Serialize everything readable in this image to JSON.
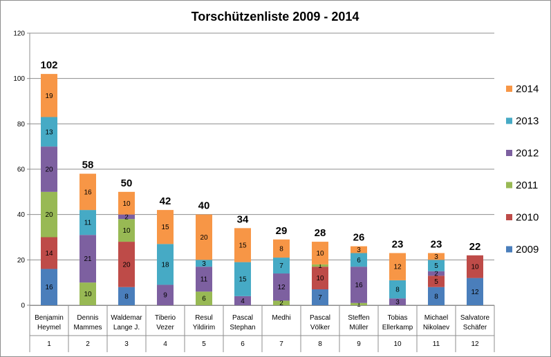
{
  "chart_data": {
    "type": "bar",
    "stacked": true,
    "title": "Torschützenliste 2009 - 2014",
    "ylim": [
      0,
      120
    ],
    "yticks": [
      0,
      20,
      40,
      60,
      80,
      100,
      120
    ],
    "grid": true,
    "legend_position": "right",
    "categories": [
      {
        "name": [
          "Benjamin",
          "Heymel"
        ],
        "rank": "1",
        "total": 102
      },
      {
        "name": [
          "Dennis",
          "Mammes"
        ],
        "rank": "2",
        "total": 58
      },
      {
        "name": [
          "Waldemar",
          "Lange J."
        ],
        "rank": "3",
        "total": 50
      },
      {
        "name": [
          "Tiberio",
          "Vezer"
        ],
        "rank": "4",
        "total": 42
      },
      {
        "name": [
          "Resul",
          "Yildirim"
        ],
        "rank": "5",
        "total": 40
      },
      {
        "name": [
          "Pascal",
          "Stephan"
        ],
        "rank": "6",
        "total": 34
      },
      {
        "name": [
          "Medhi"
        ],
        "rank": "7",
        "total": 29
      },
      {
        "name": [
          "Pascal",
          "Völker"
        ],
        "rank": "8",
        "total": 28
      },
      {
        "name": [
          "Steffen",
          "Müller"
        ],
        "rank": "9",
        "total": 26
      },
      {
        "name": [
          "Tobias",
          "Ellerkamp"
        ],
        "rank": "10",
        "total": 23
      },
      {
        "name": [
          "Michael",
          "Nikolaev"
        ],
        "rank": "11",
        "total": 23
      },
      {
        "name": [
          "Salvatore",
          "Schäfer"
        ],
        "rank": "12",
        "total": 22
      }
    ],
    "series": [
      {
        "name": "2009",
        "color": "#4a7ebb",
        "values": [
          16,
          0,
          8,
          0,
          0,
          0,
          0,
          7,
          0,
          0,
          8,
          12
        ]
      },
      {
        "name": "2010",
        "color": "#be4b48",
        "values": [
          14,
          0,
          20,
          0,
          0,
          0,
          0,
          10,
          0,
          0,
          5,
          10
        ]
      },
      {
        "name": "2011",
        "color": "#98b954",
        "values": [
          20,
          10,
          10,
          0,
          6,
          0,
          2,
          1,
          1,
          0,
          0,
          0
        ]
      },
      {
        "name": "2012",
        "color": "#7d60a0",
        "values": [
          20,
          21,
          2,
          9,
          11,
          4,
          12,
          0,
          16,
          3,
          2,
          0
        ]
      },
      {
        "name": "2013",
        "color": "#46aac5",
        "values": [
          13,
          11,
          0,
          18,
          3,
          15,
          7,
          0,
          6,
          8,
          5,
          0
        ]
      },
      {
        "name": "2014",
        "color": "#f79646",
        "values": [
          19,
          16,
          10,
          15,
          20,
          15,
          8,
          10,
          3,
          12,
          3,
          0
        ]
      }
    ]
  }
}
